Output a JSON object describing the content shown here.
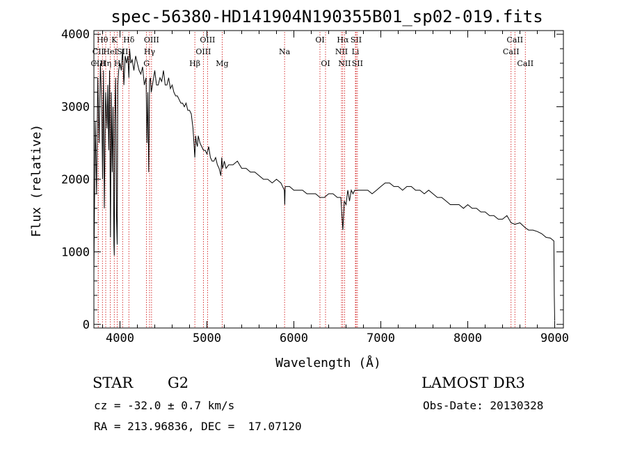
{
  "chart_data": {
    "type": "line",
    "title": "spec-56380-HD141904N190355B01_sp02-019.fits",
    "xlabel": "Wavelength (Å)",
    "ylabel": "Flux (relative)",
    "xlim": [
      3700,
      9100
    ],
    "ylim": [
      -50,
      4050
    ],
    "xticks": [
      4000,
      5000,
      6000,
      7000,
      8000,
      9000
    ],
    "yticks": [
      0,
      1000,
      2000,
      3000,
      4000
    ],
    "series": [
      {
        "x": [
          3700,
          3715,
          3730,
          3745,
          3760,
          3775,
          3790,
          3800,
          3810,
          3820,
          3835,
          3850,
          3860,
          3870,
          3880,
          3890,
          3900,
          3910,
          3920,
          3930,
          3934,
          3940,
          3950,
          3960,
          3968,
          3975,
          3985,
          4000,
          4015,
          4030,
          4045,
          4060,
          4075,
          4090,
          4102,
          4110,
          4125,
          4140,
          4160,
          4180,
          4200,
          4220,
          4240,
          4260,
          4280,
          4300,
          4310,
          4320,
          4330,
          4340,
          4350,
          4360,
          4380,
          4400,
          4420,
          4440,
          4460,
          4480,
          4500,
          4520,
          4540,
          4560,
          4580,
          4600,
          4620,
          4640,
          4660,
          4680,
          4700,
          4720,
          4740,
          4760,
          4780,
          4800,
          4820,
          4840,
          4861,
          4870,
          4880,
          4890,
          4900,
          4920,
          4940,
          4960,
          4980,
          5000,
          5020,
          5040,
          5060,
          5080,
          5100,
          5120,
          5140,
          5160,
          5170,
          5180,
          5190,
          5200,
          5220,
          5250,
          5300,
          5350,
          5400,
          5450,
          5500,
          5550,
          5600,
          5650,
          5700,
          5750,
          5800,
          5850,
          5890,
          5895,
          5900,
          5950,
          6000,
          6050,
          6100,
          6150,
          6200,
          6250,
          6300,
          6350,
          6400,
          6450,
          6500,
          6540,
          6563,
          6580,
          6600,
          6620,
          6640,
          6660,
          6680,
          6700,
          6750,
          6800,
          6850,
          6900,
          6950,
          7000,
          7050,
          7100,
          7150,
          7200,
          7250,
          7300,
          7350,
          7400,
          7450,
          7500,
          7550,
          7600,
          7650,
          7700,
          7750,
          7800,
          7850,
          7900,
          7950,
          8000,
          8050,
          8100,
          8150,
          8200,
          8250,
          8300,
          8350,
          8400,
          8450,
          8498,
          8542,
          8600,
          8662,
          8700,
          8750,
          8800,
          8850,
          8900,
          8950,
          8990,
          8995,
          9000
        ],
        "y": [
          700,
          2800,
          1800,
          3400,
          2500,
          3600,
          3000,
          2000,
          3500,
          1600,
          3200,
          2700,
          3300,
          2400,
          3500,
          1200,
          3200,
          2100,
          3000,
          1100,
          950,
          2800,
          3400,
          1500,
          1100,
          3300,
          3500,
          3600,
          3500,
          3800,
          3300,
          3700,
          3600,
          3700,
          3400,
          3800,
          3600,
          3650,
          3500,
          3700,
          3600,
          3500,
          3450,
          3550,
          3300,
          3400,
          2500,
          3200,
          2100,
          3350,
          3400,
          3200,
          3350,
          3500,
          3300,
          3300,
          3400,
          3350,
          3500,
          3300,
          3300,
          3400,
          3250,
          3300,
          3200,
          3150,
          3150,
          3100,
          3050,
          3050,
          3000,
          3050,
          2950,
          2950,
          2900,
          2700,
          2300,
          2600,
          2500,
          2450,
          2600,
          2500,
          2450,
          2400,
          2400,
          2350,
          2450,
          2300,
          2250,
          2250,
          2300,
          2200,
          2150,
          2050,
          2300,
          2150,
          2200,
          2250,
          2150,
          2200,
          2200,
          2250,
          2150,
          2150,
          2100,
          2100,
          2050,
          2000,
          2000,
          1950,
          2000,
          1950,
          1850,
          1650,
          1900,
          1900,
          1850,
          1850,
          1850,
          1800,
          1800,
          1800,
          1750,
          1750,
          1800,
          1800,
          1750,
          1750,
          1300,
          1700,
          1650,
          1850,
          1700,
          1850,
          1800,
          1850,
          1850,
          1850,
          1850,
          1800,
          1850,
          1900,
          1950,
          1950,
          1900,
          1900,
          1850,
          1900,
          1900,
          1850,
          1850,
          1800,
          1850,
          1800,
          1750,
          1750,
          1700,
          1650,
          1650,
          1650,
          1600,
          1650,
          1600,
          1600,
          1550,
          1550,
          1500,
          1500,
          1450,
          1450,
          1500,
          1400,
          1380,
          1400,
          1330,
          1300,
          1300,
          1280,
          1250,
          1200,
          1190,
          1150,
          400,
          50
        ]
      }
    ],
    "line_markers": [
      {
        "label": "Hθ",
        "wave": 3798,
        "row": 0
      },
      {
        "label": "CII",
        "wave": 3750,
        "row": 1
      },
      {
        "label": "CIII",
        "wave": 3750,
        "row": 2
      },
      {
        "label": "Hη",
        "wave": 3836,
        "row": 2
      },
      {
        "label": "HeI",
        "wave": 3889,
        "row": 1
      },
      {
        "label": "K",
        "wave": 3934,
        "row": 0
      },
      {
        "label": "H",
        "wave": 3969,
        "row": 2
      },
      {
        "label": "SII",
        "wave": 4030,
        "row": 1
      },
      {
        "label": "Hδ",
        "wave": 4102,
        "row": 0
      },
      {
        "label": "G",
        "wave": 4305,
        "row": 2
      },
      {
        "label": "Hγ",
        "wave": 4340,
        "row": 1
      },
      {
        "label": "OIII",
        "wave": 4363,
        "row": 0
      },
      {
        "label": "Hβ",
        "wave": 4861,
        "row": 2
      },
      {
        "label": "OIII",
        "wave": 4959,
        "row": 1
      },
      {
        "label": "OIII",
        "wave": 5007,
        "row": 0
      },
      {
        "label": "Mg",
        "wave": 5175,
        "row": 2
      },
      {
        "label": "Na",
        "wave": 5893,
        "row": 1
      },
      {
        "label": "OI",
        "wave": 6300,
        "row": 0
      },
      {
        "label": "OI",
        "wave": 6364,
        "row": 2
      },
      {
        "label": "NII",
        "wave": 6548,
        "row": 1
      },
      {
        "label": "Hα",
        "wave": 6563,
        "row": 0
      },
      {
        "label": "NII",
        "wave": 6583,
        "row": 2
      },
      {
        "label": "Li",
        "wave": 6708,
        "row": 1
      },
      {
        "label": "SII",
        "wave": 6716,
        "row": 0
      },
      {
        "label": "SII",
        "wave": 6731,
        "row": 2
      },
      {
        "label": "CaII",
        "wave": 8498,
        "row": 1
      },
      {
        "label": "CaII",
        "wave": 8542,
        "row": 0
      },
      {
        "label": "CaII",
        "wave": 8662,
        "row": 2
      }
    ],
    "line_color": "#000000",
    "marker_color": "#cc0000",
    "grid": false
  },
  "info": {
    "class_label": "STAR",
    "subclass": "G2",
    "survey": "LAMOST DR3",
    "redshift": "cz = -32.0 ± 0.7 km/s",
    "obs_date": "Obs-Date: 20130328",
    "coords": "RA = 213.96836, DEC =  17.07120"
  }
}
